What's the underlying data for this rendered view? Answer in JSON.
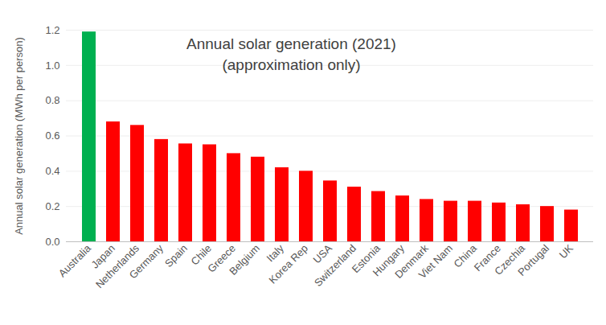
{
  "chart_data": {
    "type": "bar",
    "title": "Annual solar generation (2021)",
    "subtitle": "(approximation only)",
    "y_label": "Annual solar generation (MWh per person)",
    "categories": [
      "Australia",
      "Japan",
      "Netherlands",
      "Germany",
      "Spain",
      "Chile",
      "Greece",
      "Belgium",
      "Italy",
      "Korea Rep",
      "USA",
      "Switzerland",
      "Estonia",
      "Hungary",
      "Denmark",
      "Viet Nam",
      "China",
      "France",
      "Czechia",
      "Portugal",
      "UK"
    ],
    "values": [
      1.19,
      0.68,
      0.66,
      0.58,
      0.555,
      0.55,
      0.5,
      0.48,
      0.42,
      0.4,
      0.345,
      0.31,
      0.285,
      0.26,
      0.24,
      0.23,
      0.23,
      0.22,
      0.21,
      0.2,
      0.18
    ],
    "colors": [
      "#00b050",
      "#ff0000",
      "#ff0000",
      "#ff0000",
      "#ff0000",
      "#ff0000",
      "#ff0000",
      "#ff0000",
      "#ff0000",
      "#ff0000",
      "#ff0000",
      "#ff0000",
      "#ff0000",
      "#ff0000",
      "#ff0000",
      "#ff0000",
      "#ff0000",
      "#ff0000",
      "#ff0000",
      "#ff0000",
      "#ff0000"
    ],
    "ylim": [
      0,
      1.2
    ],
    "yticks": [
      {
        "value": 0,
        "label": "0.0"
      },
      0.2,
      0.4,
      0.6,
      0.8,
      {
        "value": 1,
        "label": "1.0"
      },
      1.2
    ],
    "grid": true
  }
}
